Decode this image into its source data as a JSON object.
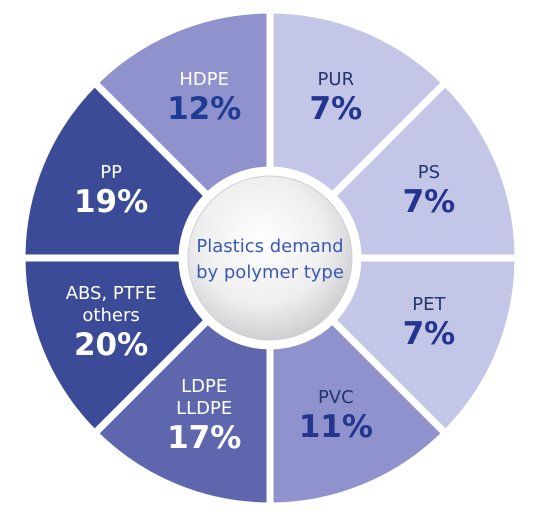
{
  "chart_data": {
    "type": "pie",
    "style": "segmented-donut",
    "center_label": [
      "Plastics demand",
      "by polymer type"
    ],
    "unit": "%",
    "slices": [
      {
        "name": "PUR",
        "name_lines": [
          "PUR"
        ],
        "label": "7%",
        "value": 7,
        "color": "#c3c6e6",
        "name_color": "#23356f",
        "value_color": "#23358f"
      },
      {
        "name": "PS",
        "name_lines": [
          "PS"
        ],
        "label": "7%",
        "value": 7,
        "color": "#c3c6e6",
        "name_color": "#23356f",
        "value_color": "#23358f"
      },
      {
        "name": "PET",
        "name_lines": [
          "PET"
        ],
        "label": "7%",
        "value": 7,
        "color": "#c3c6e6",
        "name_color": "#23356f",
        "value_color": "#23358f"
      },
      {
        "name": "PVC",
        "name_lines": [
          "PVC"
        ],
        "label": "11%",
        "value": 11,
        "color": "#8f92cc",
        "name_color": "#23356f",
        "value_color": "#23358f"
      },
      {
        "name": "LDPE LLDPE",
        "name_lines": [
          "LDPE",
          "LLDPE"
        ],
        "label": "17%",
        "value": 17,
        "color": "#5e67ad",
        "name_color": "#ffffff",
        "value_color": "#ffffff"
      },
      {
        "name": "ABS, PTFE others",
        "name_lines": [
          "ABS, PTFE",
          "others"
        ],
        "label": "20%",
        "value": 20,
        "color": "#3c4b97",
        "name_color": "#ffffff",
        "value_color": "#ffffff"
      },
      {
        "name": "PP",
        "name_lines": [
          "PP"
        ],
        "label": "19%",
        "value": 19,
        "color": "#3c4b97",
        "name_color": "#ffffff",
        "value_color": "#ffffff"
      },
      {
        "name": "HDPE",
        "name_lines": [
          "HDPE"
        ],
        "label": "12%",
        "value": 12,
        "color": "#8f92cc",
        "name_color": "#ffffff",
        "value_color": "#1f3b95"
      }
    ]
  }
}
